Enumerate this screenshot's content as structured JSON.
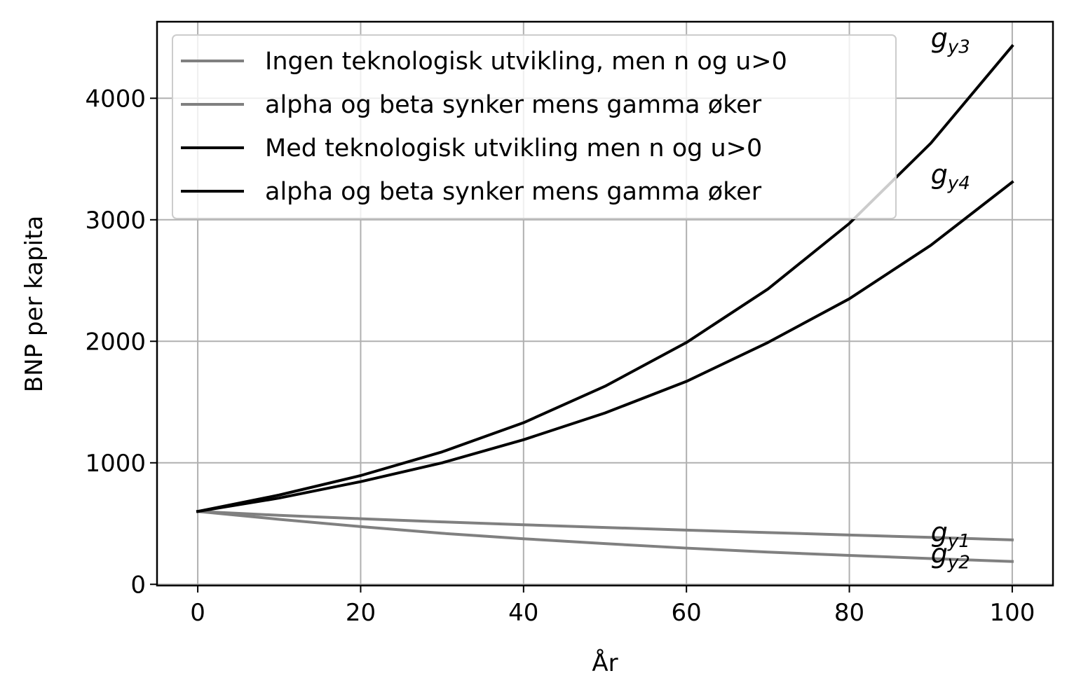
{
  "chart_data": {
    "type": "line",
    "title": "",
    "xlabel": "År",
    "ylabel": "BNP per kapita",
    "xlim": [
      -5,
      105
    ],
    "ylim": [
      -10,
      4630
    ],
    "xticks": [
      0,
      20,
      40,
      60,
      80,
      100
    ],
    "yticks": [
      0,
      1000,
      2000,
      3000,
      4000
    ],
    "grid": true,
    "legend_position": "top-left",
    "series": [
      {
        "name": "Ingen teknologisk utvikling, men n og u>0",
        "label_base": "g",
        "label_sub": "y1",
        "color": "#808080",
        "x": [
          0,
          10,
          20,
          30,
          40,
          50,
          60,
          70,
          80,
          90,
          100
        ],
        "y": [
          600,
          568,
          540,
          514,
          490,
          468,
          446,
          426,
          406,
          386,
          366
        ]
      },
      {
        "name": "alpha og beta synker mens gamma øker",
        "label_base": "g",
        "label_sub": "y2",
        "color": "#808080",
        "x": [
          0,
          10,
          20,
          30,
          40,
          50,
          60,
          70,
          80,
          90,
          100
        ],
        "y": [
          600,
          535,
          475,
          420,
          375,
          335,
          298,
          265,
          238,
          212,
          188
        ]
      },
      {
        "name": "Med teknologisk utvikling men n og u>0",
        "label_base": "g",
        "label_sub": "y3",
        "color": "#000000",
        "x": [
          0,
          10,
          20,
          30,
          40,
          50,
          60,
          70,
          80,
          90,
          100
        ],
        "y": [
          600,
          735,
          895,
          1090,
          1330,
          1630,
          1990,
          2430,
          2970,
          3630,
          4430
        ]
      },
      {
        "name": "alpha og beta synker mens gamma øker",
        "label_base": "g",
        "label_sub": "y4",
        "color": "#000000",
        "x": [
          0,
          10,
          20,
          30,
          40,
          50,
          60,
          70,
          80,
          90,
          100
        ],
        "y": [
          600,
          710,
          845,
          1000,
          1190,
          1410,
          1670,
          1990,
          2350,
          2790,
          3310
        ]
      }
    ]
  }
}
